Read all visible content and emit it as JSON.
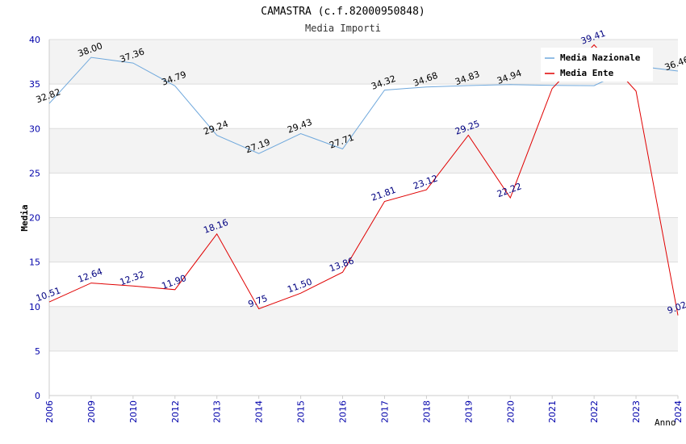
{
  "chart_data": {
    "type": "line",
    "title": "CAMASTRA (c.f.82000950848)",
    "subtitle": "Media Importi",
    "xlabel": "Anno",
    "ylabel": "Media",
    "ylim": [
      0,
      40
    ],
    "yticks": [
      0,
      5,
      10,
      15,
      20,
      25,
      30,
      35,
      40
    ],
    "categories": [
      "2006",
      "2009",
      "2010",
      "2012",
      "2013",
      "2014",
      "2015",
      "2016",
      "2017",
      "2018",
      "2019",
      "2020",
      "2021",
      "2022",
      "2023",
      "2024"
    ],
    "series": [
      {
        "name": "Media Nazionale",
        "color": "#6fa8dc",
        "label_color": "#000000",
        "values": [
          32.82,
          38.0,
          37.36,
          34.79,
          29.24,
          27.19,
          29.43,
          27.71,
          34.32,
          34.68,
          34.83,
          34.94,
          34.85,
          34.82,
          37.03,
          36.46
        ],
        "labels": [
          "32.82",
          "38.00",
          "37.36",
          "34.79",
          "29.24",
          "27.19",
          "29.43",
          "27.71",
          "34.32",
          "34.68",
          "34.83",
          "34.94",
          "",
          "",
          "",
          "36.46"
        ]
      },
      {
        "name": "Media Ente",
        "color": "#e00000",
        "label_color": "#000080",
        "values": [
          10.51,
          12.64,
          12.32,
          11.9,
          18.16,
          9.75,
          11.5,
          13.86,
          21.81,
          23.12,
          29.25,
          22.22,
          34.5,
          39.41,
          34.2,
          9.02
        ],
        "labels": [
          "10.51",
          "12.64",
          "12.32",
          "11.90",
          "18.16",
          "9.75",
          "11.50",
          "13.86",
          "21.81",
          "23.12",
          "29.25",
          "22.22",
          "",
          "39.41",
          "",
          "9.02"
        ]
      }
    ],
    "legend_position": "top-right",
    "grid": true
  }
}
